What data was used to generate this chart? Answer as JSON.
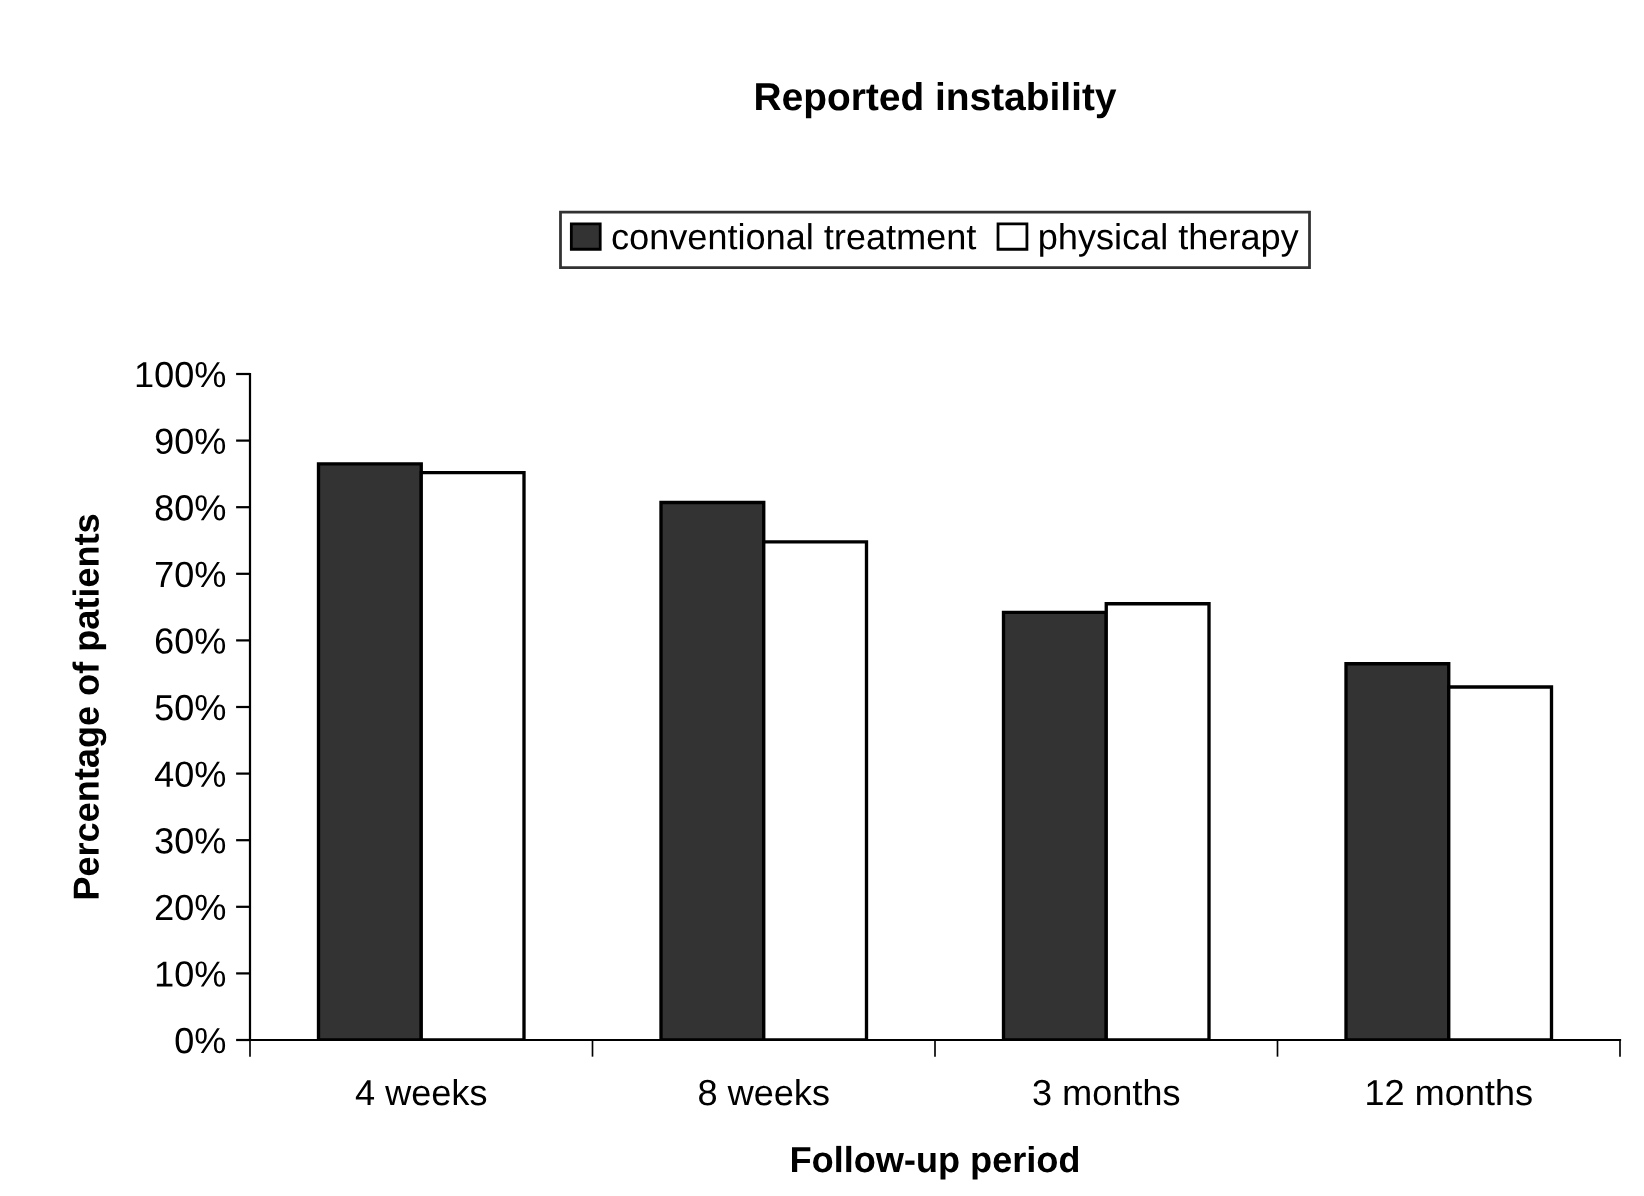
{
  "chart_data": {
    "type": "bar",
    "title": "Reported instability",
    "xlabel": "Follow-up period",
    "ylabel": "Percentage of patients",
    "categories": [
      "4 weeks",
      "8 weeks",
      "3 months",
      "12 months"
    ],
    "series": [
      {
        "name": "conventional treatment",
        "color": "#333333",
        "values": [
          86.5,
          80.7,
          64.2,
          56.5
        ]
      },
      {
        "name": "physical therapy",
        "color": "#ffffff",
        "values": [
          85.2,
          74.8,
          65.5,
          53.0
        ]
      }
    ],
    "ylim": [
      0,
      100
    ],
    "yticks": [
      {
        "value": 0,
        "label": "0%"
      },
      {
        "value": 10,
        "label": "10%"
      },
      {
        "value": 20,
        "label": "20%"
      },
      {
        "value": 30,
        "label": "30%"
      },
      {
        "value": 40,
        "label": "40%"
      },
      {
        "value": 50,
        "label": "50%"
      },
      {
        "value": 60,
        "label": "60%"
      },
      {
        "value": 70,
        "label": "70%"
      },
      {
        "value": 80,
        "label": "80%"
      },
      {
        "value": 90,
        "label": "90%"
      },
      {
        "value": 100,
        "label": "100%"
      }
    ],
    "grid": false,
    "legend": "top"
  }
}
